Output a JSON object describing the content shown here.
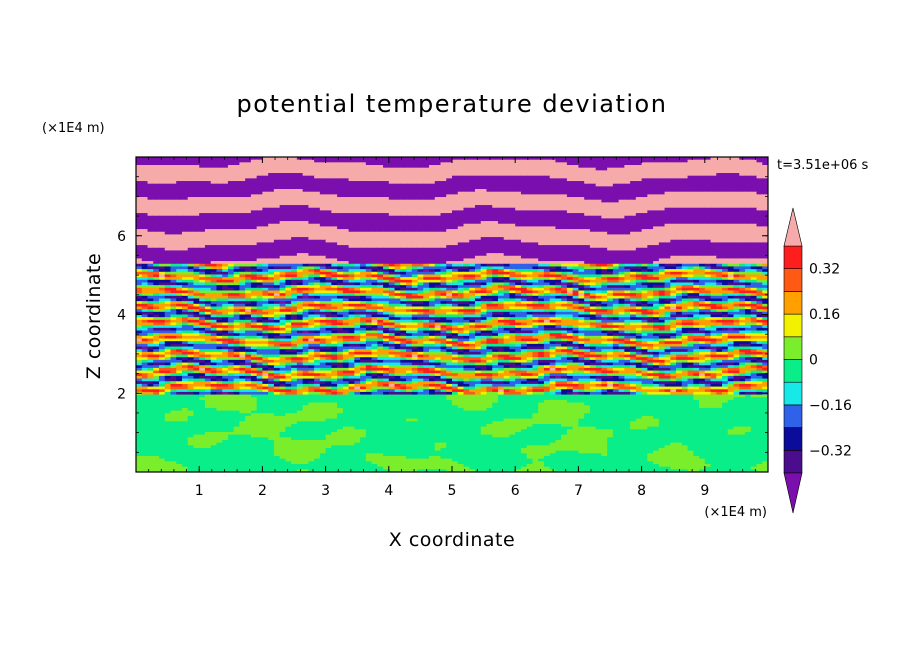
{
  "chart_data": {
    "type": "heatmap",
    "title": "potential temperature deviation",
    "xlabel": "X coordinate",
    "ylabel": "Z coordinate",
    "x_unit": "(×1E4 m)",
    "y_unit": "(×1E4 m)",
    "time_label": "t=3.51e+06 s",
    "xlim": [
      0,
      10
    ],
    "ylim": [
      0,
      8
    ],
    "xticks": [
      "1",
      "2",
      "3",
      "4",
      "5",
      "6",
      "7",
      "8",
      "9"
    ],
    "yticks": [
      "2",
      "4",
      "6"
    ],
    "colorbar": {
      "tick_labels": [
        "0.32",
        "0.16",
        "0",
        "−0.16",
        "−0.32"
      ],
      "tick_values": [
        0.32,
        0.16,
        0,
        -0.16,
        -0.32
      ],
      "levels": [
        -0.4,
        -0.32,
        -0.24,
        -0.16,
        -0.08,
        0,
        0.08,
        0.16,
        0.24,
        0.32,
        0.4
      ],
      "colors": [
        "#4b0d8e",
        "#0c0c9c",
        "#2f62e8",
        "#17e8e8",
        "#0aee8a",
        "#7aee2a",
        "#f2f200",
        "#ffa000",
        "#ff5a14",
        "#ff1e1e"
      ],
      "under_color": "#7b0fae",
      "over_color": "#f6aaaa",
      "extend": "both"
    },
    "regions": [
      {
        "z_range": [
          0,
          2
        ],
        "pattern": "green and light-green patches, weak deviation"
      },
      {
        "z_range": [
          2,
          5.2
        ],
        "pattern": "mixed horizontal bands, all colors"
      },
      {
        "z_range": [
          5.2,
          8
        ],
        "pattern": "alternating purple and pink bands"
      }
    ]
  }
}
